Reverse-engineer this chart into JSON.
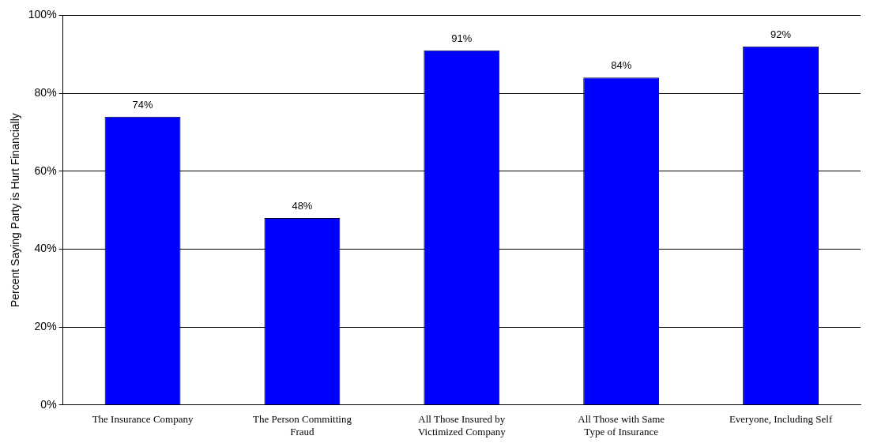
{
  "chart_data": {
    "type": "bar",
    "ylabel": "Percent Saying Party is Hurt Financially",
    "categories": [
      "The Insurance Company",
      "The Person Committing Fraud",
      "All Those Insured by Victimized Company",
      "All Those with Same Type of Insurance",
      "Everyone, Including Self"
    ],
    "values": [
      74,
      48,
      91,
      84,
      92
    ],
    "value_labels": [
      "74%",
      "48%",
      "91%",
      "84%",
      "92%"
    ],
    "color": "#0000ff",
    "ylim": [
      0,
      100
    ],
    "yticks": [
      {
        "value": 0,
        "label": "0%"
      },
      {
        "value": 20,
        "label": "20%"
      },
      {
        "value": 40,
        "label": "40%"
      },
      {
        "value": 60,
        "label": "60%"
      },
      {
        "value": 80,
        "label": "80%"
      },
      {
        "value": 100,
        "label": "100%"
      }
    ],
    "grid": "y",
    "legend": false
  }
}
